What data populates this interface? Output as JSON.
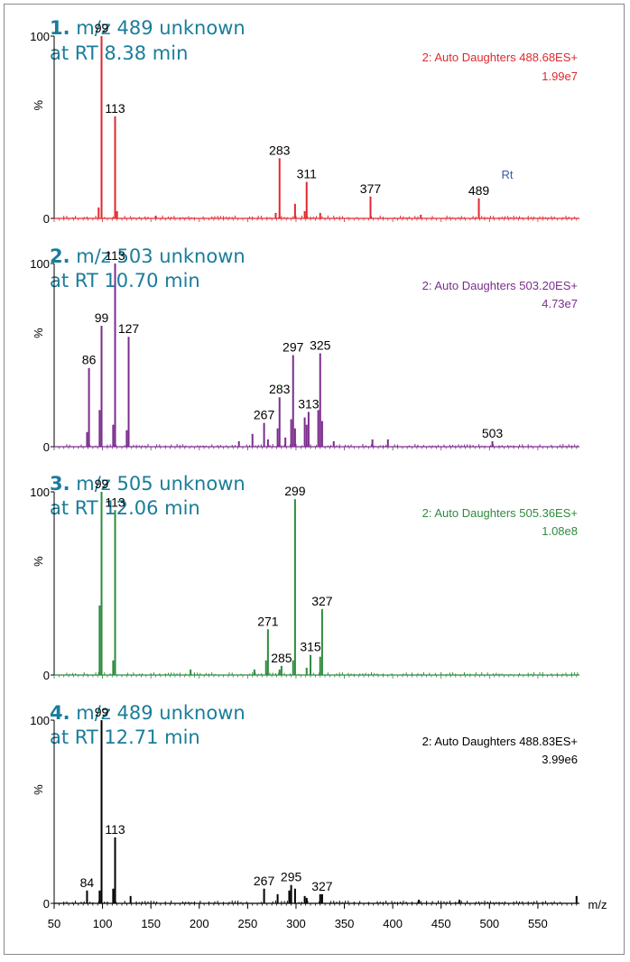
{
  "chart_data": [
    {
      "type": "line",
      "title_number": "1.",
      "title_line1": "m/z 489 unknown",
      "title_line2": "at RT 8.38 min",
      "mode": "2: Auto Daughters 488.68ES+",
      "intensity": "1.99e7",
      "color": "#e0282e",
      "ylabel": "%",
      "ylim": [
        0,
        100
      ],
      "yticks": [
        "0",
        "100"
      ],
      "xlim": [
        50,
        593
      ],
      "annotation": "Rt",
      "peaks": [
        {
          "x": 99,
          "y": 100,
          "label": "99"
        },
        {
          "x": 113,
          "y": 56,
          "label": "113"
        },
        {
          "x": 283,
          "y": 33,
          "label": "283"
        },
        {
          "x": 311,
          "y": 20,
          "label": "311"
        },
        {
          "x": 377,
          "y": 12,
          "label": "377"
        },
        {
          "x": 489,
          "y": 11,
          "label": "489"
        },
        {
          "x": 96,
          "y": 6,
          "label": ""
        },
        {
          "x": 115,
          "y": 4,
          "label": ""
        },
        {
          "x": 299,
          "y": 8,
          "label": ""
        },
        {
          "x": 309,
          "y": 4,
          "label": ""
        },
        {
          "x": 279,
          "y": 3,
          "label": ""
        },
        {
          "x": 325,
          "y": 3,
          "label": ""
        },
        {
          "x": 429,
          "y": 2,
          "label": ""
        },
        {
          "x": 155,
          "y": 1.5,
          "label": ""
        }
      ]
    },
    {
      "type": "line",
      "title_number": "2.",
      "title_line1": "m/z 503 unknown",
      "title_line2": "at RT 10.70 min",
      "mode": "2: Auto Daughters 503.20ES+",
      "intensity": "4.73e7",
      "color": "#7b2d8e",
      "ylabel": "%",
      "ylim": [
        0,
        100
      ],
      "yticks": [
        "0",
        "100"
      ],
      "xlim": [
        50,
        593
      ],
      "annotation": "",
      "peaks": [
        {
          "x": 86,
          "y": 43,
          "label": "86"
        },
        {
          "x": 99,
          "y": 66,
          "label": "99"
        },
        {
          "x": 113,
          "y": 100,
          "label": "113"
        },
        {
          "x": 127,
          "y": 60,
          "label": "127"
        },
        {
          "x": 267,
          "y": 13,
          "label": "267"
        },
        {
          "x": 283,
          "y": 27,
          "label": "283"
        },
        {
          "x": 297,
          "y": 50,
          "label": "297"
        },
        {
          "x": 313,
          "y": 19,
          "label": "313"
        },
        {
          "x": 325,
          "y": 51,
          "label": "325"
        },
        {
          "x": 503,
          "y": 3,
          "label": "503"
        },
        {
          "x": 97,
          "y": 20,
          "label": ""
        },
        {
          "x": 84,
          "y": 8,
          "label": ""
        },
        {
          "x": 111,
          "y": 12,
          "label": ""
        },
        {
          "x": 125,
          "y": 9,
          "label": ""
        },
        {
          "x": 255,
          "y": 7,
          "label": ""
        },
        {
          "x": 281,
          "y": 10,
          "label": ""
        },
        {
          "x": 295,
          "y": 15,
          "label": ""
        },
        {
          "x": 299,
          "y": 10,
          "label": ""
        },
        {
          "x": 309,
          "y": 16,
          "label": ""
        },
        {
          "x": 311,
          "y": 12,
          "label": ""
        },
        {
          "x": 323,
          "y": 20,
          "label": ""
        },
        {
          "x": 327,
          "y": 14,
          "label": ""
        },
        {
          "x": 271,
          "y": 4,
          "label": ""
        },
        {
          "x": 289,
          "y": 5,
          "label": ""
        },
        {
          "x": 379,
          "y": 4,
          "label": ""
        },
        {
          "x": 395,
          "y": 4,
          "label": ""
        },
        {
          "x": 339,
          "y": 3,
          "label": ""
        },
        {
          "x": 241,
          "y": 3,
          "label": ""
        }
      ]
    },
    {
      "type": "line",
      "title_number": "3.",
      "title_line1": "m/z 505 unknown",
      "title_line2": "at RT 12.06 min",
      "mode": "2: Auto Daughters 505.36ES+",
      "intensity": "1.08e8",
      "color": "#2e8b3e",
      "ylabel": "%",
      "ylim": [
        0,
        100
      ],
      "yticks": [
        "0",
        "100"
      ],
      "xlim": [
        50,
        593
      ],
      "annotation": "",
      "peaks": [
        {
          "x": 99,
          "y": 100,
          "label": "99"
        },
        {
          "x": 113,
          "y": 90,
          "label": "113"
        },
        {
          "x": 271,
          "y": 25,
          "label": "271"
        },
        {
          "x": 285,
          "y": 5,
          "label": "285"
        },
        {
          "x": 299,
          "y": 96,
          "label": "299"
        },
        {
          "x": 315,
          "y": 11,
          "label": "315"
        },
        {
          "x": 327,
          "y": 36,
          "label": "327"
        },
        {
          "x": 97,
          "y": 38,
          "label": ""
        },
        {
          "x": 111,
          "y": 8,
          "label": ""
        },
        {
          "x": 269,
          "y": 8,
          "label": ""
        },
        {
          "x": 297,
          "y": 8,
          "label": ""
        },
        {
          "x": 325,
          "y": 10,
          "label": ""
        },
        {
          "x": 283,
          "y": 3,
          "label": ""
        },
        {
          "x": 311,
          "y": 4,
          "label": ""
        },
        {
          "x": 257,
          "y": 3,
          "label": ""
        },
        {
          "x": 191,
          "y": 3,
          "label": ""
        }
      ]
    },
    {
      "type": "line",
      "title_number": "4.",
      "title_line1": "m/z 489 unknown",
      "title_line2": "at RT 12.71 min",
      "mode": "2: Auto Daughters 488.83ES+",
      "intensity": "3.99e6",
      "color": "#000000",
      "ylabel": "%",
      "ylim": [
        0,
        100
      ],
      "yticks": [
        "0",
        "100"
      ],
      "xlim": [
        50,
        593
      ],
      "annotation": "",
      "xlabel": "m/z",
      "xticks": [
        "50",
        "100",
        "150",
        "200",
        "250",
        "300",
        "350",
        "400",
        "450",
        "500",
        "550"
      ],
      "peaks": [
        {
          "x": 84,
          "y": 7,
          "label": "84"
        },
        {
          "x": 99,
          "y": 100,
          "label": "99"
        },
        {
          "x": 113,
          "y": 36,
          "label": "113"
        },
        {
          "x": 267,
          "y": 8,
          "label": "267"
        },
        {
          "x": 295,
          "y": 10,
          "label": "295"
        },
        {
          "x": 327,
          "y": 5,
          "label": "327"
        },
        {
          "x": 97,
          "y": 7,
          "label": ""
        },
        {
          "x": 111,
          "y": 8,
          "label": ""
        },
        {
          "x": 129,
          "y": 4,
          "label": ""
        },
        {
          "x": 281,
          "y": 5,
          "label": ""
        },
        {
          "x": 293,
          "y": 7,
          "label": ""
        },
        {
          "x": 299,
          "y": 8,
          "label": ""
        },
        {
          "x": 309,
          "y": 4,
          "label": ""
        },
        {
          "x": 325,
          "y": 5,
          "label": ""
        },
        {
          "x": 311,
          "y": 3,
          "label": ""
        },
        {
          "x": 590,
          "y": 4,
          "label": ""
        },
        {
          "x": 427,
          "y": 2,
          "label": ""
        },
        {
          "x": 469,
          "y": 2,
          "label": ""
        }
      ]
    }
  ]
}
